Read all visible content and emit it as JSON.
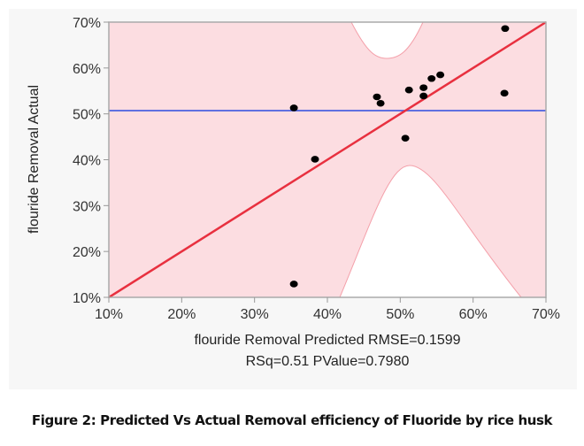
{
  "chart_data": {
    "type": "scatter",
    "title": "",
    "xlabel": "flouride Removal Predicted RMSE=0.1599",
    "xlabel_line2": "RSq=0.51 PValue=0.7980",
    "ylabel": "flouride Removal Actual",
    "xlim": [
      10,
      70
    ],
    "ylim": [
      10,
      70
    ],
    "x_ticks": [
      "10%",
      "20%",
      "30%",
      "40%",
      "50%",
      "60%",
      "70%"
    ],
    "y_ticks": [
      "10%",
      "20%",
      "30%",
      "40%",
      "50%",
      "60%",
      "70%"
    ],
    "x_tick_values": [
      10,
      20,
      30,
      40,
      50,
      60,
      70
    ],
    "y_tick_values": [
      10,
      20,
      30,
      40,
      50,
      60,
      70
    ],
    "points": [
      {
        "x": 64.4,
        "y": 68.6
      },
      {
        "x": 55.5,
        "y": 58.5
      },
      {
        "x": 54.3,
        "y": 57.7
      },
      {
        "x": 53.2,
        "y": 55.7
      },
      {
        "x": 51.2,
        "y": 55.2
      },
      {
        "x": 46.8,
        "y": 53.7
      },
      {
        "x": 47.3,
        "y": 52.3
      },
      {
        "x": 53.2,
        "y": 53.9
      },
      {
        "x": 64.3,
        "y": 54.5
      },
      {
        "x": 35.4,
        "y": 51.3
      },
      {
        "x": 50.7,
        "y": 44.7
      },
      {
        "x": 38.3,
        "y": 40.1
      },
      {
        "x": 35.4,
        "y": 12.9
      }
    ],
    "fit_line": {
      "x": [
        10,
        70
      ],
      "y": [
        10,
        70
      ],
      "color": "#e8303f"
    },
    "mean_line": {
      "y": 50.7,
      "color": "#6070e0"
    },
    "confidence_band_color": "#fcdde1",
    "grid": false
  },
  "caption": "Figure 2: Predicted Vs Actual Removal efficiency of Fluoride by rice husk"
}
